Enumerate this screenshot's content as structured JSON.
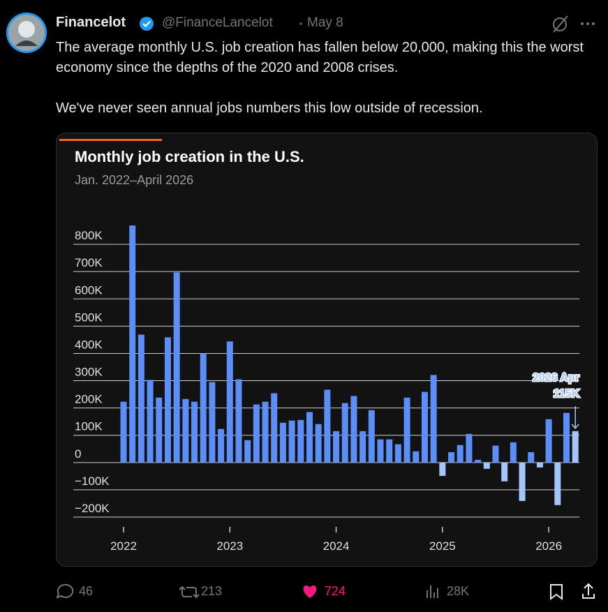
{
  "tweet": {
    "name": "Financelot",
    "handle": "@FinanceLancelot",
    "date": "May 8",
    "paragraphs": [
      "The average monthly U.S. job creation has fallen below 20,000, making this the worst economy since the depths of the 2020 and 2008 crises.",
      "We've never seen annual jobs numbers this low outside of recession."
    ],
    "stats": {
      "replies": 46,
      "reposts": 213,
      "likes": 724,
      "views": "28K"
    }
  },
  "chart_data": {
    "type": "bar",
    "title": "Monthly job creation in the U.S.",
    "subtitle": "Jan. 2022–April 2026",
    "categories": [
      "2022",
      null,
      null,
      null,
      null,
      null,
      null,
      null,
      null,
      null,
      null,
      null,
      "2023",
      null,
      null,
      null,
      null,
      null,
      null,
      null,
      null,
      null,
      null,
      null,
      "2024",
      null,
      null,
      null,
      null,
      null,
      null,
      null,
      null,
      null,
      null,
      null,
      "2025",
      null,
      null,
      null,
      null,
      null,
      null,
      null,
      null,
      null,
      null,
      null,
      "2026",
      null,
      null,
      null
    ],
    "values": [
      223000,
      869000,
      469000,
      303000,
      238000,
      459000,
      697000,
      233000,
      223000,
      400000,
      295000,
      123000,
      444000,
      305000,
      82000,
      213000,
      223000,
      254000,
      146000,
      154000,
      156000,
      185000,
      141000,
      267000,
      115000,
      218000,
      244000,
      115000,
      192000,
      85000,
      85000,
      67000,
      238000,
      41000,
      259000,
      321000,
      -49000,
      38000,
      64000,
      105000,
      10000,
      -23000,
      62000,
      -69000,
      74000,
      -141000,
      38000,
      -18000,
      159000,
      -156000,
      182000,
      115000
    ],
    "colors": [
      "#5b8ef7",
      "#5b8ef7",
      "#5b8ef7",
      "#5b8ef7",
      "#5b8ef7",
      "#5b8ef7",
      "#5b8ef7",
      "#5b8ef7",
      "#5b8ef7",
      "#5b8ef7",
      "#5b8ef7",
      "#5b8ef7",
      "#5b8ef7",
      "#5b8ef7",
      "#5b8ef7",
      "#5b8ef7",
      "#5b8ef7",
      "#5b8ef7",
      "#5b8ef7",
      "#5b8ef7",
      "#5b8ef7",
      "#5b8ef7",
      "#5b8ef7",
      "#5b8ef7",
      "#5b8ef7",
      "#5b8ef7",
      "#5b8ef7",
      "#5b8ef7",
      "#5b8ef7",
      "#5b8ef7",
      "#5b8ef7",
      "#5b8ef7",
      "#5b8ef7",
      "#5b8ef7",
      "#5b8ef7",
      "#5b8ef7",
      "#a3c6fa",
      "#5b8ef7",
      "#5b8ef7",
      "#5b8ef7",
      "#5b8ef7",
      "#a3c6fa",
      "#5b8ef7",
      "#a3c6fa",
      "#5b8ef7",
      "#a3c6fa",
      "#5b8ef7",
      "#a3c6fa",
      "#5b8ef7",
      "#a3c6fa",
      "#5b8ef7",
      "#a3c6fa"
    ],
    "ylim": [
      -200000,
      900000
    ],
    "yticks": [
      {
        "value": -200000,
        "label": "−200K"
      },
      {
        "value": -100000,
        "label": "−100K"
      },
      0,
      {
        "value": 100000,
        "label": "100K"
      },
      {
        "value": 200000,
        "label": "200K"
      },
      {
        "value": 300000,
        "label": "300K"
      },
      {
        "value": 400000,
        "label": "400K"
      },
      {
        "value": 500000,
        "label": "500K"
      },
      {
        "value": 600000,
        "label": "600K"
      },
      {
        "value": 700000,
        "label": "700K"
      },
      {
        "value": 800000,
        "label": "800K"
      }
    ],
    "grid": true,
    "annotation": {
      "label": "2026 Apr",
      "value_label": "115K"
    }
  }
}
